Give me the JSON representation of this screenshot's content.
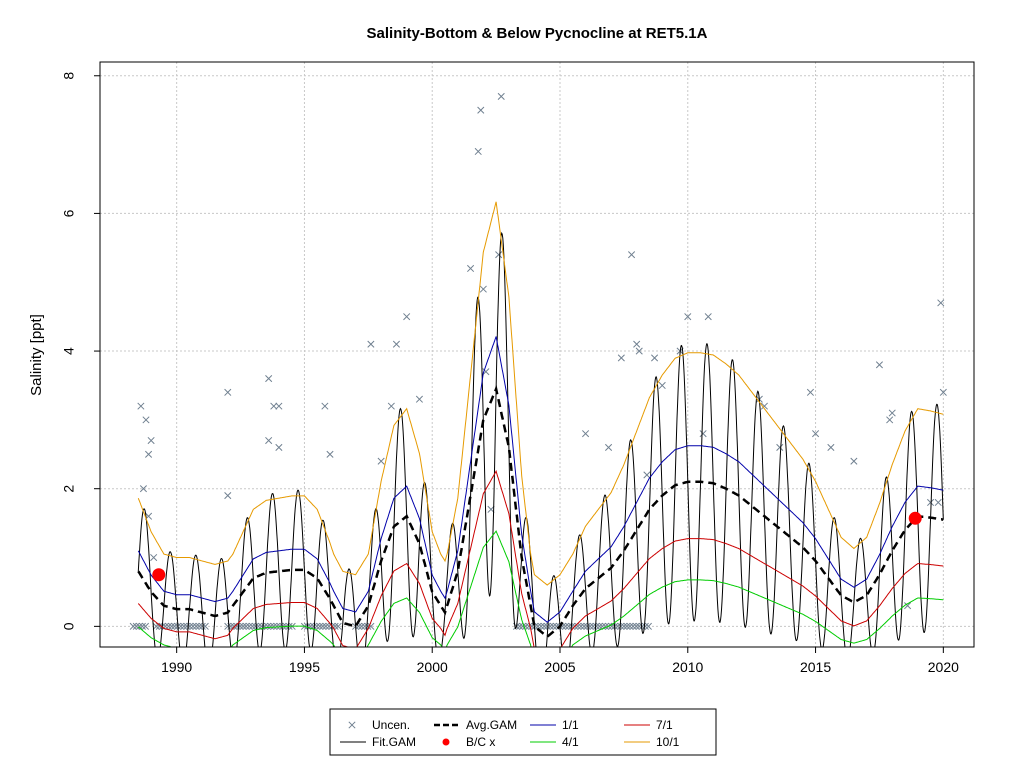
{
  "chart_data": {
    "type": "scatter",
    "title": "Salinity-Bottom & Below Pycnocline at RET5.1A",
    "xlabel": "",
    "ylabel": "Salinity [ppt]",
    "xlim": [
      1987.0,
      2021.2
    ],
    "ylim": [
      -0.3,
      8.2
    ],
    "x_ticks": [
      1990,
      1995,
      2000,
      2005,
      2010,
      2015,
      2020
    ],
    "y_ticks": [
      0,
      2,
      4,
      6,
      8
    ],
    "grid": true,
    "legend_position": "bottom-center",
    "legend": [
      {
        "label": "Uncen.",
        "kind": "cross",
        "color": "#708090"
      },
      {
        "label": "Fit.GAM",
        "kind": "line",
        "color": "#000000"
      },
      {
        "label": "Avg.GAM",
        "kind": "dashed",
        "color": "#000000"
      },
      {
        "label": "B/C x",
        "kind": "dot",
        "color": "#ff0000"
      },
      {
        "label": "1/1",
        "kind": "line",
        "color": "#0000aa"
      },
      {
        "label": "4/1",
        "kind": "line",
        "color": "#00cc00"
      },
      {
        "label": "7/1",
        "kind": "line",
        "color": "#cc0000"
      },
      {
        "label": "10/1",
        "kind": "line",
        "color": "#e69a00"
      }
    ],
    "observations": {
      "x": [
        1988.6,
        1988.8,
        1988.9,
        1989.0,
        1988.9,
        1988.7,
        1989.1,
        1992.0,
        1992.0,
        1993.6,
        1993.8,
        1994.0,
        1993.6,
        1994.0,
        1995.8,
        1996.0,
        1997.6,
        1998.0,
        1998.4,
        1998.6,
        1999.0,
        1999.5,
        2001.5,
        2001.8,
        2001.9,
        2002.0,
        2002.1,
        2002.3,
        2002.6,
        2002.7,
        2006.0,
        2006.9,
        2007.4,
        2007.8,
        2008.0,
        2008.1,
        2008.4,
        2008.7,
        2009.0,
        2009.7,
        2010.0,
        2010.6,
        2010.8,
        2012.8,
        2013.0,
        2013.6,
        2014.8,
        2015.0,
        2015.6,
        2016.5,
        2017.5,
        2017.9,
        2018.0,
        2018.6,
        2019.5,
        2019.9,
        2020.0,
        2019.8
      ],
      "y": [
        3.2,
        3.0,
        2.5,
        2.7,
        1.6,
        2.0,
        1.0,
        3.4,
        1.9,
        3.6,
        3.2,
        3.2,
        2.7,
        2.6,
        3.2,
        2.5,
        4.1,
        2.4,
        3.2,
        4.1,
        4.5,
        3.3,
        5.2,
        6.9,
        7.5,
        4.9,
        3.7,
        1.7,
        5.4,
        7.7,
        2.8,
        2.6,
        3.9,
        5.4,
        4.1,
        4.0,
        2.2,
        3.9,
        3.5,
        4.0,
        4.5,
        2.8,
        4.5,
        3.3,
        3.2,
        2.6,
        3.4,
        2.8,
        2.6,
        2.4,
        3.8,
        3.0,
        3.1,
        0.3,
        1.8,
        4.7,
        3.4,
        1.8
      ]
    },
    "censored_zero_x_ranges": [
      [
        1988.3,
        1988.8
      ],
      [
        1989.2,
        1991.2
      ],
      [
        1992.0,
        1994.6
      ],
      [
        1995.0,
        1996.4
      ],
      [
        1997.0,
        1997.6
      ],
      [
        2003.3,
        2008.5
      ]
    ],
    "avg_gam": {
      "x": [
        1988.5,
        1989.0,
        1989.5,
        1990.0,
        1990.5,
        1991.0,
        1991.5,
        1992.0,
        1992.5,
        1993.0,
        1993.5,
        1994.0,
        1994.5,
        1995.0,
        1995.5,
        1996.0,
        1996.5,
        1997.0,
        1997.5,
        1998.0,
        1998.5,
        1999.0,
        1999.5,
        2000.0,
        2000.5,
        2001.0,
        2001.5,
        2002.0,
        2002.5,
        2003.0,
        2003.5,
        2004.0,
        2004.5,
        2005.0,
        2005.5,
        2006.0,
        2006.5,
        2007.0,
        2007.5,
        2008.0,
        2008.5,
        2009.0,
        2009.5,
        2010.0,
        2010.5,
        2011.0,
        2011.5,
        2012.0,
        2012.5,
        2013.0,
        2013.5,
        2014.0,
        2014.5,
        2015.0,
        2015.5,
        2016.0,
        2016.5,
        2017.0,
        2017.5,
        2018.0,
        2018.5,
        2019.0,
        2019.5,
        2020.0
      ],
      "y": [
        0.8,
        0.5,
        0.3,
        0.25,
        0.25,
        0.2,
        0.15,
        0.2,
        0.45,
        0.7,
        0.78,
        0.8,
        0.82,
        0.82,
        0.7,
        0.4,
        0.05,
        0.0,
        0.3,
        0.95,
        1.45,
        1.6,
        1.2,
        0.5,
        0.2,
        0.8,
        1.9,
        3.0,
        3.45,
        2.6,
        1.0,
        0.0,
        -0.15,
        0.0,
        0.3,
        0.55,
        0.7,
        0.85,
        1.1,
        1.4,
        1.7,
        1.9,
        2.05,
        2.1,
        2.1,
        2.08,
        2.0,
        1.9,
        1.75,
        1.6,
        1.45,
        1.3,
        1.15,
        0.95,
        0.7,
        0.45,
        0.35,
        0.45,
        0.75,
        1.1,
        1.4,
        1.6,
        1.58,
        1.55
      ]
    },
    "season_curves": [
      {
        "label": "1/1",
        "offset": 0.35
      },
      {
        "label": "4/1",
        "offset": -0.95
      },
      {
        "label": "7/1",
        "offset": -0.55
      },
      {
        "label": "10/1",
        "offset": 1.25
      }
    ],
    "fit_gam": {
      "amplitude": 1.35
    },
    "bc_points": {
      "x": [
        1989.3,
        2018.9
      ],
      "y": [
        0.75,
        1.57
      ]
    }
  }
}
